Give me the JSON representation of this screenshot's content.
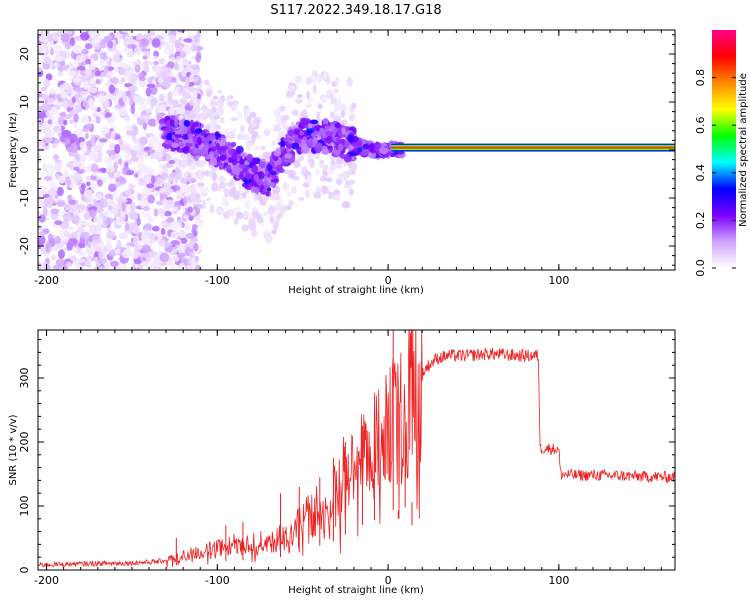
{
  "title": "S117.2022.349.18.17.G18",
  "colors": {
    "snr_line": "#ee2222",
    "frame": "#000000",
    "background": "#ffffff",
    "colorbar_stops": [
      "#ffffff",
      "#cfa3ff",
      "#7a00ff",
      "#0000ff",
      "#00ffff",
      "#00ff00",
      "#ffff00",
      "#ff8800",
      "#ff0000",
      "#ff0088"
    ]
  },
  "chart_data": [
    {
      "type": "heatmap",
      "xlabel": "Height of straight line (km)",
      "ylabel": "Frequency (Hz)",
      "xlim": [
        -205,
        168
      ],
      "ylim": [
        -25,
        25
      ],
      "xticks": [
        -200,
        -100,
        0,
        100
      ],
      "xtick_labels": [
        "-200",
        "-100",
        "0",
        "100"
      ],
      "yticks": [
        -20,
        -10,
        0,
        10,
        20
      ],
      "ytick_labels": [
        "-20",
        "-10",
        "0",
        "10",
        "20"
      ],
      "grid": false,
      "colorbar": {
        "label": "Normalized spectral amplitude",
        "range": [
          0,
          1
        ],
        "ticks": [
          0.0,
          0.2,
          0.4,
          0.6,
          0.8
        ],
        "tick_labels": [
          "0.0",
          "0.2",
          "0.4",
          "0.6",
          "0.8"
        ]
      },
      "features": {
        "noise_region_x": [
          -205,
          -130
        ],
        "signal_track": [
          [
            -130,
            4
          ],
          [
            -120,
            3
          ],
          [
            -110,
            2
          ],
          [
            -100,
            0
          ],
          [
            -90,
            -2
          ],
          [
            -80,
            -5
          ],
          [
            -70,
            -6
          ],
          [
            -60,
            0
          ],
          [
            -50,
            3
          ],
          [
            -40,
            3
          ],
          [
            -30,
            2
          ],
          [
            -20,
            1
          ],
          [
            -10,
            0
          ],
          [
            0,
            0
          ],
          [
            20,
            0.5
          ],
          [
            60,
            0.5
          ],
          [
            100,
            0.5
          ],
          [
            168,
            0.5
          ]
        ],
        "band_amplitude_after_zero": 0.85
      }
    },
    {
      "type": "line",
      "xlabel": "Height of straight line (km)",
      "ylabel": "SNR (10 * v/v)",
      "xlim": [
        -205,
        168
      ],
      "ylim": [
        0,
        375
      ],
      "xticks": [
        -200,
        -100,
        0,
        100
      ],
      "xtick_labels": [
        "-200",
        "-100",
        "0",
        "100"
      ],
      "yticks": [
        0,
        100,
        200,
        300
      ],
      "ytick_labels": [
        "0",
        "100",
        "200",
        "300"
      ],
      "grid": false,
      "series": [
        {
          "color": "#ee2222",
          "x": [
            -205,
            -190,
            -170,
            -150,
            -135,
            -125,
            -115,
            -105,
            -95,
            -85,
            -75,
            -65,
            -55,
            -48,
            -40,
            -33,
            -27,
            -22,
            -17,
            -12,
            -8,
            -4,
            0,
            3,
            5,
            8,
            10,
            12,
            15,
            18,
            22,
            28,
            35,
            45,
            60,
            75,
            88,
            89,
            95,
            100,
            101,
            110,
            130,
            150,
            168
          ],
          "values": [
            8,
            9,
            10,
            11,
            13,
            18,
            25,
            30,
            35,
            38,
            42,
            48,
            60,
            80,
            95,
            110,
            130,
            150,
            170,
            185,
            195,
            205,
            220,
            235,
            230,
            240,
            245,
            255,
            270,
            295,
            315,
            330,
            335,
            335,
            338,
            335,
            335,
            190,
            190,
            188,
            150,
            148,
            148,
            146,
            145
          ]
        }
      ],
      "spikes": [
        {
          "x": -124,
          "value": 50
        },
        {
          "x": -95,
          "value": 70
        },
        {
          "x": -85,
          "value": 75
        },
        {
          "x": -63,
          "value": 120
        },
        {
          "x": -52,
          "value": 130
        },
        {
          "x": -40,
          "value": 145
        },
        {
          "x": -32,
          "value": 175
        },
        {
          "x": -25,
          "value": 200
        },
        {
          "x": -15,
          "value": 225
        },
        {
          "x": -8,
          "value": 230
        },
        {
          "x": 3,
          "value": 375
        },
        {
          "x": 6,
          "value": 80
        },
        {
          "x": 10,
          "value": 210
        },
        {
          "x": 14,
          "value": 70
        }
      ]
    }
  ]
}
